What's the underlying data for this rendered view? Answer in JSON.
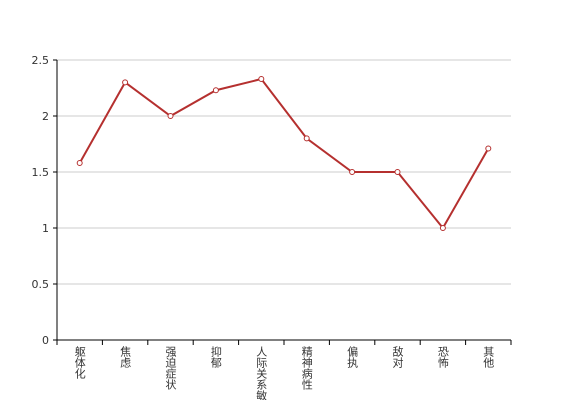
{
  "chart_data": {
    "type": "line",
    "categories": [
      "躯体化",
      "焦虑",
      "强迫症状",
      "抑郁",
      "人际关系敏感",
      "精神病性",
      "偏执",
      "敌对",
      "恐怖",
      "其他"
    ],
    "values": [
      1.58,
      2.3,
      2.0,
      2.23,
      2.33,
      1.8,
      1.5,
      1.5,
      1.0,
      1.71
    ],
    "color": "#b5302f",
    "ylim": [
      0,
      2.5
    ],
    "yticks": [
      0,
      0.5,
      1,
      1.5,
      2,
      2.5
    ],
    "grid": true
  }
}
